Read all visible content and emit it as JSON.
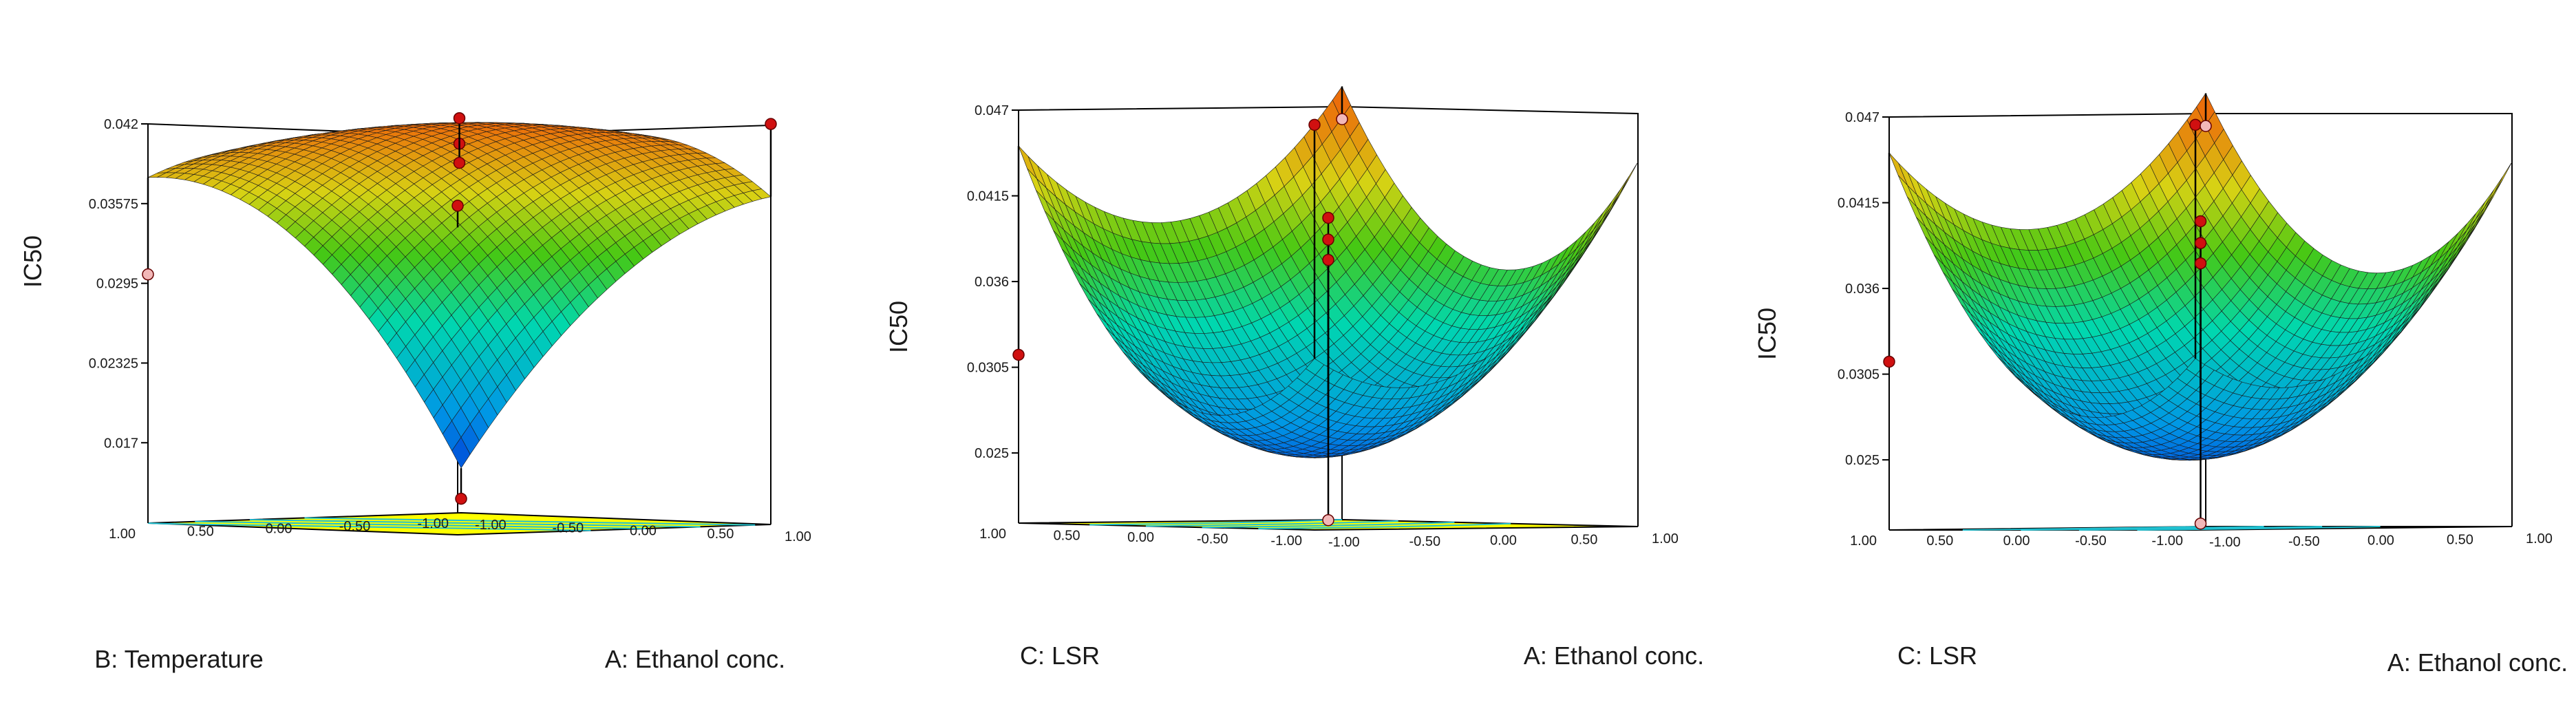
{
  "chart_data": [
    {
      "type": "surface",
      "zlabel": "IC50",
      "xlabel": "A: Ethanol conc.",
      "ylabel": "B: Temperature",
      "x_range": [
        -1,
        1
      ],
      "y_range": [
        -1,
        1
      ],
      "zlim": [
        0.0107,
        0.042
      ],
      "z_ticks": [
        "0.017",
        "0.02325",
        "0.0295",
        "0.03575",
        "0.042"
      ],
      "x_ticks": [
        "-1.00",
        "-0.50",
        "0.00",
        "0.50",
        "1.00"
      ],
      "y_ticks": [
        "-1.00",
        "-0.50",
        "0.00",
        "0.50",
        "1.00"
      ],
      "surface": {
        "type": "quadratic",
        "c0": 0.0408,
        "a": 0.0048,
        "b": 0.0055,
        "ab": -0.0063,
        "aa": -0.004,
        "bb": -0.006
      },
      "points": [
        {
          "x": -1,
          "y": -1,
          "z": 0.0118,
          "color": "#d01010"
        },
        {
          "x": 1,
          "y": 1,
          "z": 0.0365,
          "color": "#d01010"
        },
        {
          "x": -1,
          "y": 1,
          "z": 0.0302,
          "color": "#f2b8b8"
        },
        {
          "x": 1,
          "y": -1,
          "z": 0.0421,
          "color": "#d01010"
        },
        {
          "x": 0,
          "y": 0,
          "z": 0.0405,
          "color": "#d01010"
        },
        {
          "x": 0,
          "y": 0,
          "z": 0.0425,
          "color": "#d01010"
        },
        {
          "x": 0,
          "y": 0,
          "z": 0.039,
          "color": "#d01010"
        }
      ]
    },
    {
      "type": "surface",
      "zlabel": "IC50",
      "xlabel": "A: Ethanol conc.",
      "ylabel": "C: LSR",
      "x_range": [
        -1,
        1
      ],
      "y_range": [
        -1,
        1
      ],
      "zlim": [
        0.0205,
        0.047
      ],
      "z_ticks": [
        "0.025",
        "0.0305",
        "0.036",
        "0.0415",
        "0.047"
      ],
      "x_ticks": [
        "-1.00",
        "-0.50",
        "0.00",
        "0.50",
        "1.00"
      ],
      "y_ticks": [
        "-1.00",
        "-0.50",
        "0.00",
        "0.50",
        "1.00"
      ],
      "surface": {
        "type": "quadratic",
        "c0": 0.0262,
        "a": 0.004,
        "b": 0.0044,
        "ab": -0.0022,
        "aa": 0.0067,
        "bb": 0.0092
      },
      "points": [
        {
          "x": -1,
          "y": -1,
          "z": 0.0465,
          "color": "#d01010"
        },
        {
          "x": 1,
          "y": 1,
          "z": 0.0462,
          "color": "#f2b8b8"
        },
        {
          "x": -1,
          "y": 1,
          "z": 0.0313,
          "color": "#d01010"
        },
        {
          "x": 0,
          "y": 0,
          "z": 0.0402,
          "color": "#d01010"
        },
        {
          "x": 0,
          "y": 0,
          "z": 0.0388,
          "color": "#d01010"
        },
        {
          "x": 0,
          "y": 0,
          "z": 0.0375,
          "color": "#d01010"
        },
        {
          "x": 0,
          "y": 0,
          "z": 0.0208,
          "color": "#f2b8b8"
        }
      ]
    },
    {
      "type": "surface",
      "zlabel": "IC50",
      "xlabel": "A: Ethanol conc.",
      "ylabel": "C: LSR",
      "x_range": [
        -1,
        1
      ],
      "y_range": [
        -1,
        1
      ],
      "zlim": [
        0.0205,
        0.047
      ],
      "z_ticks": [
        "0.025",
        "0.0305",
        "0.036",
        "0.0415",
        "0.047"
      ],
      "x_ticks": [
        "-1.00",
        "-0.50",
        "0.00",
        "0.50",
        "1.00"
      ],
      "y_ticks": [
        "-1.00",
        "-0.50",
        "0.00",
        "0.50",
        "1.00"
      ],
      "surface": {
        "type": "quadratic",
        "c0": 0.0262,
        "a": 0.004,
        "b": 0.0044,
        "ab": -0.0022,
        "aa": 0.0067,
        "bb": 0.0092
      },
      "points": [
        {
          "x": -1,
          "y": -1,
          "z": 0.0465,
          "color": "#d01010"
        },
        {
          "x": 1,
          "y": 1,
          "z": 0.0462,
          "color": "#f2b8b8"
        },
        {
          "x": -1,
          "y": 1,
          "z": 0.0313,
          "color": "#d01010"
        },
        {
          "x": 0,
          "y": 0,
          "z": 0.0402,
          "color": "#d01010"
        },
        {
          "x": 0,
          "y": 0,
          "z": 0.0388,
          "color": "#d01010"
        },
        {
          "x": 0,
          "y": 0,
          "z": 0.0375,
          "color": "#d01010"
        },
        {
          "x": 0,
          "y": 0,
          "z": 0.0208,
          "color": "#f2b8b8"
        }
      ]
    }
  ]
}
